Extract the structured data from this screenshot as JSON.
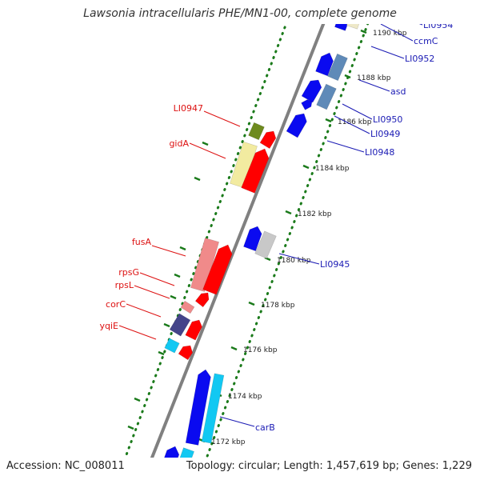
{
  "title": "Lawsonia intracellularis PHE/MN1-00, complete genome",
  "footer": {
    "accession": "Accession: NC_008011",
    "summary": "Topology: circular; Length: 1,457,619 bp; Genes: 1,229"
  },
  "colors": {
    "backbone": "#808080",
    "tick": "#1a7a1a",
    "label_right": "#1a1ab4",
    "label_left": "#dd1111",
    "scale_text": "#222222"
  },
  "scale_ticks": [
    {
      "label": "1190 kbp"
    },
    {
      "label": "1188 kbp"
    },
    {
      "label": "1186 kbp"
    },
    {
      "label": "1184 kbp"
    },
    {
      "label": "1182 kbp"
    },
    {
      "label": "1180 kbp"
    },
    {
      "label": "1178 kbp"
    },
    {
      "label": "1176 kbp"
    },
    {
      "label": "1174 kbp"
    },
    {
      "label": "1172 kbp"
    }
  ],
  "gene_labels_right": [
    {
      "label": "LI0954"
    },
    {
      "label": "ccmC"
    },
    {
      "label": "LI0952"
    },
    {
      "label": "asd"
    },
    {
      "label": "LI0950"
    },
    {
      "label": "LI0949"
    },
    {
      "label": "LI0948"
    },
    {
      "label": "LI0945"
    },
    {
      "label": "carB"
    }
  ],
  "gene_labels_left": [
    {
      "label": "LI0947"
    },
    {
      "label": "gidA"
    },
    {
      "label": "fusA"
    },
    {
      "label": "rpsG"
    },
    {
      "label": "rpsL"
    },
    {
      "label": "corC"
    },
    {
      "label": "yqiE"
    }
  ]
}
